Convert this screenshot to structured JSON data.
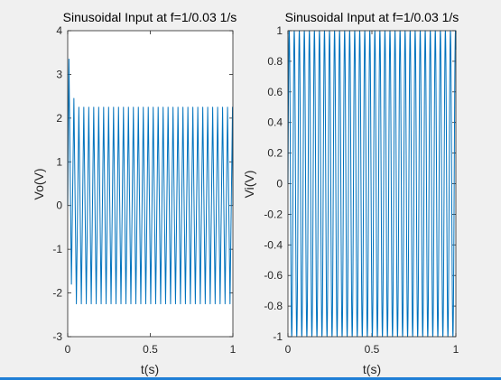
{
  "figure": {
    "background": "#f0f0f0",
    "accent": "#1f7fd6"
  },
  "chart_data": [
    {
      "type": "line",
      "title": "Sinusoidal Input at f=1/0.03 1/s",
      "xlabel": "t(s)",
      "ylabel": "Vo(V)",
      "xlim": [
        0,
        1
      ],
      "ylim": [
        -3,
        4
      ],
      "xticks": [
        "0",
        "0.5",
        "1"
      ],
      "yticks": [
        "-3",
        "-2",
        "-1",
        "0",
        "1",
        "2",
        "3",
        "4"
      ],
      "grid": false,
      "line_color": "#0072bd",
      "series": [
        {
          "frequency_hz": 33.33,
          "steady_amplitude": 2.25,
          "initial_peaks": [
            3.35,
            -1.8,
            2.45,
            -2.25
          ],
          "t_range": [
            0,
            1
          ]
        }
      ]
    },
    {
      "type": "line",
      "title": "Sinusoidal Input at f=1/0.03 1/s",
      "xlabel": "t(s)",
      "ylabel": "Vi(V)",
      "xlim": [
        0,
        1
      ],
      "ylim": [
        -1,
        1
      ],
      "xticks": [
        "0",
        "0.5",
        "1"
      ],
      "yticks": [
        "-1",
        "-0.8",
        "-0.6",
        "-0.4",
        "-0.2",
        "0",
        "0.2",
        "0.4",
        "0.6",
        "0.8",
        "1"
      ],
      "grid": false,
      "line_color": "#0072bd",
      "series": [
        {
          "frequency_hz": 33.33,
          "amplitude": 1,
          "t_range": [
            0,
            1
          ]
        }
      ]
    }
  ]
}
